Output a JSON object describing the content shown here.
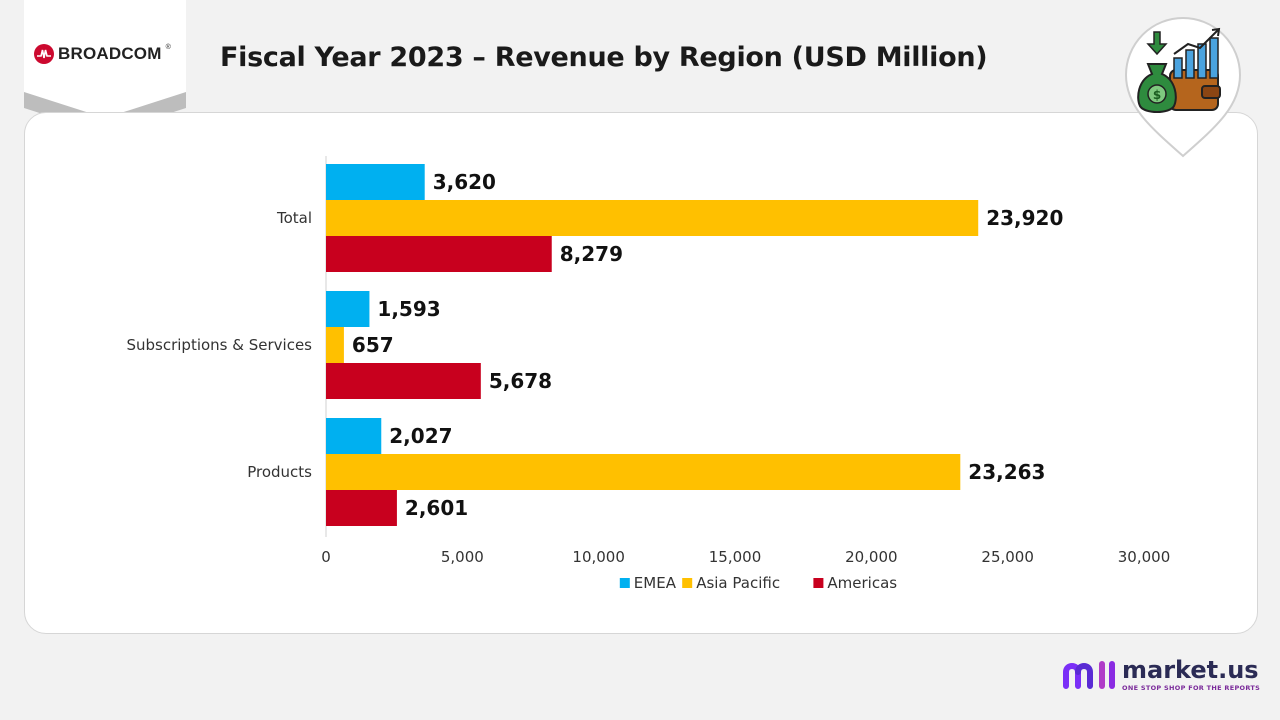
{
  "brand": {
    "name": "BROADCOM",
    "mark": "®"
  },
  "title": "Fiscal Year 2023 – Revenue  by Region (USD Million)",
  "footer": {
    "name": "market.us",
    "tagline": "ONE STOP SHOP FOR THE REPORTS"
  },
  "chart_data": {
    "type": "bar",
    "orientation": "horizontal",
    "title": "Fiscal Year 2023 – Revenue  by Region (USD Million)",
    "categories": [
      "Total",
      "Subscriptions & Services",
      "Products"
    ],
    "series": [
      {
        "name": "EMEA",
        "color": "#00b0f0",
        "values": [
          3620,
          1593,
          2027
        ],
        "labels": [
          "3,620",
          "1,593",
          "2,027"
        ]
      },
      {
        "name": "Asia Pacific",
        "color": "#ffc000",
        "values": [
          23920,
          657,
          23263
        ],
        "labels": [
          "23,920",
          "657",
          "23,263"
        ]
      },
      {
        "name": "Americas",
        "color": "#c8001e",
        "values": [
          8279,
          5678,
          2601
        ],
        "labels": [
          "8,279",
          "5,678",
          "2,601"
        ]
      }
    ],
    "xlim": [
      0,
      30000
    ],
    "ticks": [
      0,
      5000,
      10000,
      15000,
      20000,
      25000,
      30000
    ],
    "tick_labels": [
      "0",
      "5,000",
      "10,000",
      "15,000",
      "20,000",
      "25,000",
      "30,000"
    ],
    "legend": "bottom",
    "grid": false
  }
}
